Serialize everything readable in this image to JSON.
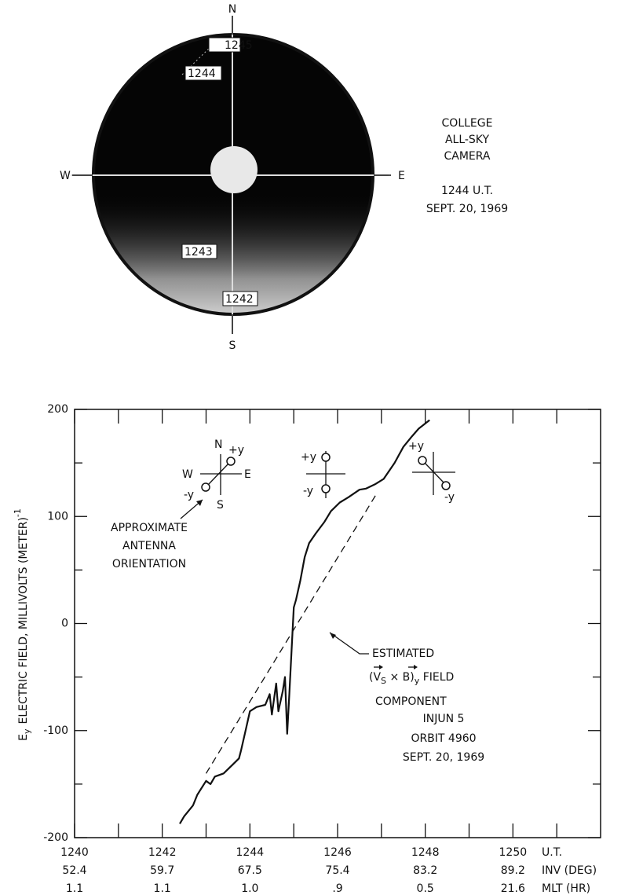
{
  "sky_camera": {
    "compass": {
      "north": "N",
      "south": "S",
      "east": "E",
      "west": "W"
    },
    "times": [
      "1245",
      "1244",
      "1243",
      "1242"
    ],
    "caption": [
      "COLLEGE",
      "ALL-SKY",
      "CAMERA",
      "1244 U.T.",
      "SEPT. 20, 1969"
    ]
  },
  "chart_data": {
    "type": "line",
    "ylabel": {
      "symbol": "E",
      "subscript": "y",
      "text": "ELECTRIC FIELD, MILLIVOLTS (METER)",
      "superscript": "-1"
    },
    "xlabel": "U.T.",
    "xlim": [
      1240,
      1252
    ],
    "xticks": [
      1240,
      1242,
      1244,
      1246,
      1248,
      1250
    ],
    "xminor": [
      1241,
      1243,
      1245,
      1247,
      1249,
      1251
    ],
    "xtick_rows": [
      {
        "name": "INV (DEG)",
        "labels": [
          "52.4",
          "59.7",
          "67.5",
          "75.4",
          "83.2",
          "89.2"
        ]
      },
      {
        "name": "MLT (HR)",
        "labels": [
          "1.1",
          "1.1",
          "1.0",
          ".9",
          "0.5",
          "21.6"
        ]
      }
    ],
    "ylim": [
      -200,
      200
    ],
    "yticks": [
      -200,
      -100,
      0,
      100,
      200
    ],
    "yminor": [
      -150,
      -50,
      50,
      150
    ],
    "series": [
      {
        "color": "#111111",
        "dashed": false,
        "x": [
          1242.4,
          1242.5,
          1242.7,
          1242.8,
          1243.0,
          1243.1,
          1243.2,
          1243.4,
          1243.6,
          1243.75,
          1243.8,
          1243.9,
          1244.0,
          1244.15,
          1244.35,
          1244.45,
          1244.5,
          1244.6,
          1244.65,
          1244.75,
          1244.8,
          1244.85,
          1244.9,
          1244.95,
          1245.0,
          1245.05,
          1245.15,
          1245.25,
          1245.35,
          1245.5,
          1245.7,
          1245.85,
          1246.05,
          1246.25,
          1246.5,
          1246.65,
          1246.85,
          1247.05,
          1247.3,
          1247.5,
          1247.7,
          1247.85,
          1248.1
        ],
        "values": [
          -187,
          -180,
          -170,
          -160,
          -147,
          -150,
          -143,
          -140,
          -132,
          -126,
          -118,
          -100,
          -82,
          -78,
          -76,
          -66,
          -85,
          -56,
          -82,
          -63,
          -50,
          -103,
          -65,
          -25,
          15,
          22,
          40,
          62,
          75,
          84,
          95,
          105,
          113,
          118,
          125,
          126,
          130,
          135,
          150,
          165,
          175,
          182,
          190
        ]
      },
      {
        "color": "#111111",
        "dashed": true,
        "x": [
          1243.0,
          1246.9
        ],
        "values": [
          -140,
          122
        ]
      }
    ],
    "antenna": {
      "first": {
        "north": "N",
        "south": "S",
        "west": "W",
        "east": "E",
        "plus": "+y",
        "minus": "-y"
      },
      "second": {
        "plus": "+y",
        "minus": "-y"
      },
      "third": {
        "plus": "+y",
        "minus": "-y"
      }
    },
    "annotations": {
      "antenna_note": [
        "APPROXIMATE",
        "ANTENNA",
        "ORIENTATION"
      ],
      "estimated": {
        "first": "ESTIMATED",
        "open": "(",
        "v": "V",
        "v_sub": "S",
        "times": " × ",
        "b": "B",
        "close": ")",
        "sub": "y",
        "field": " FIELD",
        "last": "COMPONENT"
      },
      "orbit": [
        "INJUN 5",
        "ORBIT 4960",
        "SEPT. 20, 1969"
      ]
    }
  }
}
